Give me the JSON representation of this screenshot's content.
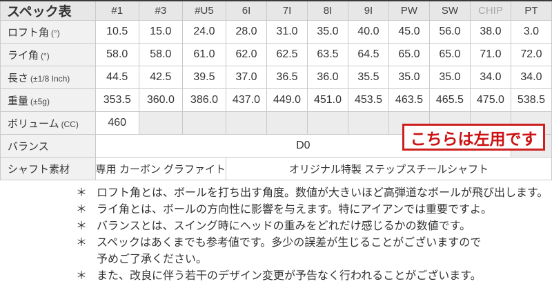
{
  "table": {
    "title": "スペック表",
    "columns": [
      "#1",
      "#3",
      "#U5",
      "6I",
      "7I",
      "8I",
      "9I",
      "PW",
      "SW",
      "CHIP",
      "PT"
    ],
    "muted_column_index": 9,
    "rows": [
      {
        "type": "values",
        "label": "ロフト角",
        "unit": "(°)",
        "values": [
          "10.5",
          "15.0",
          "24.0",
          "28.0",
          "31.0",
          "35.0",
          "40.0",
          "45.0",
          "56.0",
          "38.0",
          "3.0"
        ]
      },
      {
        "type": "values",
        "label": "ライ角",
        "unit": "(°)",
        "values": [
          "58.0",
          "58.0",
          "61.0",
          "62.0",
          "62.5",
          "63.5",
          "64.5",
          "65.0",
          "65.0",
          "71.0",
          "72.0"
        ]
      },
      {
        "type": "values",
        "label": "長さ",
        "unit": "(±1/8 Inch)",
        "values": [
          "44.5",
          "42.5",
          "39.5",
          "37.0",
          "36.5",
          "36.0",
          "35.5",
          "35.0",
          "35.0",
          "34.0",
          "34.0"
        ]
      },
      {
        "type": "values",
        "label": "重量",
        "unit": "(±5g)",
        "values": [
          "353.5",
          "360.0",
          "386.0",
          "437.0",
          "449.0",
          "451.0",
          "453.5",
          "463.5",
          "465.5",
          "475.0",
          "538.5"
        ]
      },
      {
        "type": "volume",
        "label": "ボリューム",
        "unit": "(CC)",
        "first_value": "460",
        "empty_count": 10
      },
      {
        "type": "balance",
        "label": "バランス",
        "unit": "",
        "merged_value": "D0",
        "merged_span": 10,
        "empty_count": 1
      },
      {
        "type": "shaft",
        "label": "シャフト素材",
        "unit": "",
        "cells": [
          {
            "span": 3,
            "text": "専用 カーボン グラファイト"
          },
          {
            "span": 8,
            "text": "オリジナル特製 ステップスチールシャフト"
          }
        ]
      }
    ]
  },
  "overlay": {
    "text": "こちらは左用です"
  },
  "footnotes": {
    "marker": "＊",
    "items": [
      {
        "lines": [
          "ロフト角とは、ボールを打ち出す角度。数値が大きいほど高弾道なボールが飛び出します。"
        ]
      },
      {
        "lines": [
          "ライ角とは、ボールの方向性に影響を与えます。特にアイアンでは重要ですよ。"
        ]
      },
      {
        "lines": [
          "バランスとは、スイング時にヘッドの重みをどれだけ感じるかの数値です。"
        ]
      },
      {
        "lines": [
          "スペックはあくまでも参考値です。多少の誤差が生じることがございますので",
          "予めご了承ください。"
        ]
      },
      {
        "lines": [
          "また、改良に伴う若干のデザイン変更が予告なく行われることがございます。"
        ]
      }
    ]
  },
  "colors": {
    "accent_red": "#cc1212",
    "muted_text": "#a9a9a9",
    "header_bg": "#e7e7e7",
    "label_bg": "#f1f1f1",
    "empty_cell_bg": "#ececec"
  }
}
